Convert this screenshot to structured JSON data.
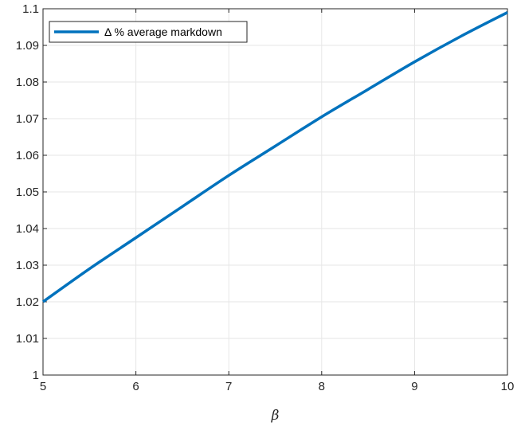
{
  "chart_data": {
    "type": "line",
    "title": "",
    "xlabel": "β",
    "ylabel": "",
    "xlim": [
      5,
      10
    ],
    "ylim": [
      1,
      1.1
    ],
    "xticks": [
      5,
      6,
      7,
      8,
      9,
      10
    ],
    "xtick_labels": [
      "5",
      "6",
      "7",
      "8",
      "9",
      "10"
    ],
    "yticks": [
      1,
      1.01,
      1.02,
      1.03,
      1.04,
      1.05,
      1.06,
      1.07,
      1.08,
      1.09,
      1.1
    ],
    "ytick_labels": [
      "1",
      "1.01",
      "1.02",
      "1.03",
      "1.04",
      "1.05",
      "1.06",
      "1.07",
      "1.08",
      "1.09",
      "1.1"
    ],
    "grid": true,
    "legend_position": "top-left",
    "series": [
      {
        "name": "Δ % average markdown",
        "color": "#0072BD",
        "x": [
          5,
          5.5,
          6,
          6.5,
          7,
          7.5,
          8,
          8.5,
          9,
          9.5,
          10
        ],
        "y": [
          1.02,
          1.029,
          1.0375,
          1.046,
          1.0545,
          1.0625,
          1.0705,
          1.078,
          1.0855,
          1.0925,
          1.099
        ]
      }
    ]
  }
}
